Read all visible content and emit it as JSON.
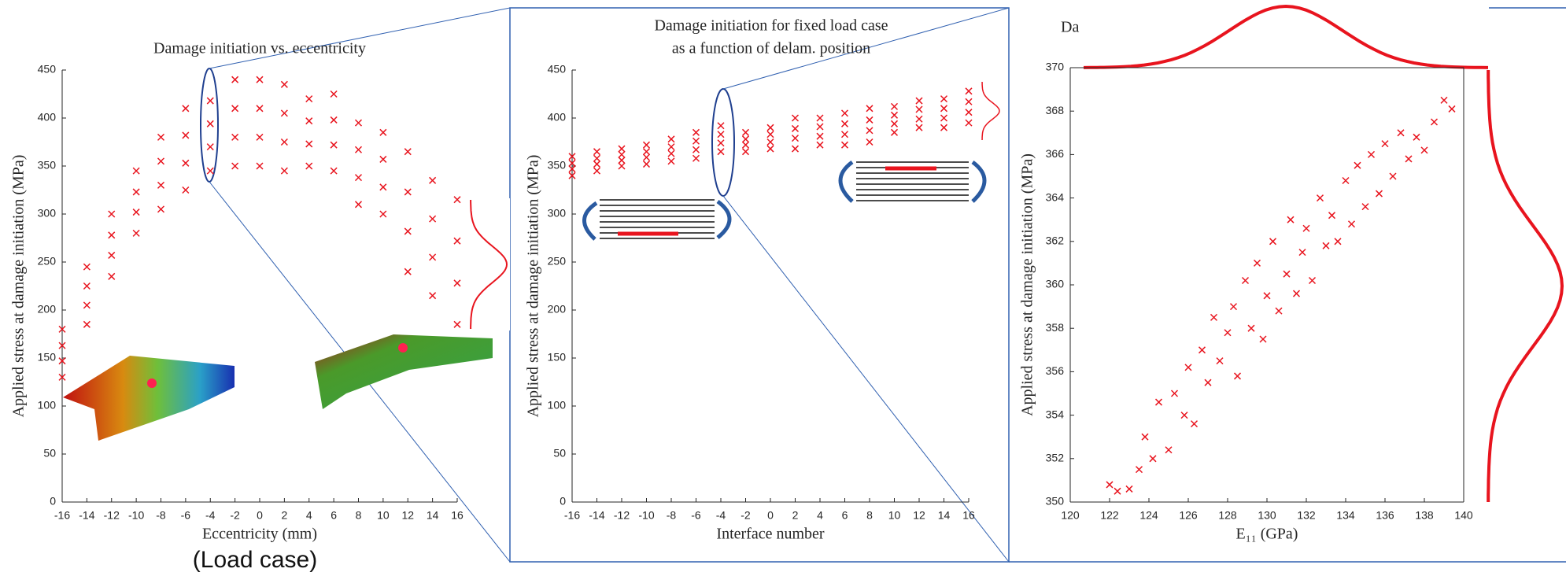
{
  "chart_data": [
    {
      "type": "scatter",
      "title": [
        "Damage initiation vs. eccentricity"
      ],
      "x_label": "Eccentricity (mm)",
      "y_label": "Applied stress at damage initiation (MPa)",
      "annotation": "(Load case)",
      "color": "#e8141e",
      "x": [
        -16,
        -16,
        -16,
        -16,
        -14,
        -14,
        -14,
        -14,
        -12,
        -12,
        -12,
        -12,
        -10,
        -10,
        -10,
        -10,
        -8,
        -8,
        -8,
        -8,
        -6,
        -6,
        -6,
        -6,
        -4,
        -4,
        -4,
        -4,
        -2,
        -2,
        -2,
        -2,
        0,
        0,
        0,
        0,
        2,
        2,
        2,
        2,
        4,
        4,
        4,
        4,
        6,
        6,
        6,
        6,
        8,
        8,
        8,
        8,
        10,
        10,
        10,
        10,
        12,
        12,
        12,
        12,
        14,
        14,
        14,
        14,
        16,
        16,
        16,
        16
      ],
      "values": [
        130,
        147,
        163,
        180,
        185,
        205,
        225,
        245,
        235,
        257,
        278,
        300,
        280,
        302,
        323,
        345,
        305,
        330,
        355,
        380,
        325,
        353,
        382,
        410,
        345,
        370,
        394,
        418,
        350,
        380,
        410,
        440,
        350,
        380,
        410,
        440,
        345,
        375,
        405,
        435,
        350,
        373,
        397,
        420,
        345,
        372,
        398,
        425,
        310,
        338,
        367,
        395,
        300,
        328,
        357,
        385,
        240,
        282,
        323,
        365,
        215,
        255,
        295,
        335,
        185,
        228,
        272,
        315
      ],
      "xlim": [
        -16,
        16
      ],
      "xticks": [
        -16,
        -14,
        -12,
        -10,
        -8,
        -6,
        -4,
        -2,
        0,
        2,
        4,
        6,
        8,
        10,
        12,
        14,
        16
      ],
      "ylim": [
        0,
        450
      ],
      "yticks": [
        0,
        50,
        100,
        150,
        200,
        250,
        300,
        350,
        400,
        450
      ]
    },
    {
      "type": "scatter",
      "title": [
        "Damage initiation for fixed load case",
        "as a function of delam. position"
      ],
      "x_label": "Interface number",
      "y_label": "Applied stress at damage initiation (MPa)",
      "color": "#e8141e",
      "x": [
        -16,
        -16,
        -16,
        -16,
        -14,
        -14,
        -14,
        -14,
        -12,
        -12,
        -12,
        -12,
        -10,
        -10,
        -10,
        -10,
        -8,
        -8,
        -8,
        -8,
        -6,
        -6,
        -6,
        -6,
        -4,
        -4,
        -4,
        -4,
        -2,
        -2,
        -2,
        -2,
        0,
        0,
        0,
        0,
        2,
        2,
        2,
        2,
        4,
        4,
        4,
        4,
        6,
        6,
        6,
        6,
        8,
        8,
        8,
        8,
        10,
        10,
        10,
        10,
        12,
        12,
        12,
        12,
        14,
        14,
        14,
        14,
        16,
        16,
        16,
        16
      ],
      "values": [
        340,
        347,
        353,
        360,
        345,
        352,
        358,
        365,
        350,
        356,
        362,
        368,
        352,
        359,
        365,
        372,
        355,
        363,
        370,
        378,
        358,
        367,
        376,
        385,
        365,
        374,
        383,
        392,
        365,
        372,
        378,
        385,
        368,
        375,
        383,
        390,
        368,
        379,
        389,
        400,
        372,
        381,
        391,
        400,
        372,
        383,
        394,
        405,
        375,
        387,
        398,
        410,
        385,
        394,
        403,
        412,
        390,
        399,
        409,
        418,
        390,
        400,
        410,
        420,
        395,
        406,
        417,
        428
      ],
      "xlim": [
        -16,
        16
      ],
      "xticks": [
        -16,
        -14,
        -12,
        -10,
        -8,
        -6,
        -4,
        -2,
        0,
        2,
        4,
        6,
        8,
        10,
        12,
        14,
        16
      ],
      "ylim": [
        0,
        450
      ],
      "yticks": [
        0,
        50,
        100,
        150,
        200,
        250,
        300,
        350,
        400,
        450
      ]
    },
    {
      "type": "scatter",
      "title": [
        "Da"
      ],
      "x_label": "E₁₁ (GPa)",
      "y_label": "Applied stress at damage initiation (MPa)",
      "color": "#e8141e",
      "x": [
        122,
        122.4,
        123,
        123.5,
        123.8,
        124.2,
        124.5,
        125,
        125.3,
        125.8,
        126,
        126.3,
        126.7,
        127,
        127.3,
        127.6,
        128,
        128.3,
        128.5,
        128.9,
        129.2,
        129.5,
        129.8,
        130,
        130.3,
        130.6,
        131,
        131.2,
        131.5,
        131.8,
        132,
        132.3,
        132.7,
        133,
        133.3,
        133.6,
        134,
        134.3,
        134.6,
        135,
        135.3,
        135.7,
        136,
        136.4,
        136.8,
        137.2,
        137.6,
        138,
        138.5,
        139,
        139.4
      ],
      "values": [
        350.8,
        350.5,
        350.6,
        351.5,
        353,
        352,
        354.6,
        352.4,
        355,
        354,
        356.2,
        353.6,
        357,
        355.5,
        358.5,
        356.5,
        357.8,
        359,
        355.8,
        360.2,
        358,
        361,
        357.5,
        359.5,
        362,
        358.8,
        360.5,
        363,
        359.6,
        361.5,
        362.6,
        360.2,
        364,
        361.8,
        363.2,
        362,
        364.8,
        362.8,
        365.5,
        363.6,
        366,
        364.2,
        366.5,
        365,
        367,
        365.8,
        366.8,
        366.2,
        367.5,
        368.5,
        368.1
      ],
      "xlim": [
        120,
        140
      ],
      "xticks": [
        120,
        122,
        124,
        126,
        128,
        130,
        132,
        134,
        136,
        138,
        140
      ],
      "ylim": [
        350,
        370
      ],
      "yticks": [
        350,
        352,
        354,
        356,
        358,
        360,
        362,
        364,
        366,
        368,
        370
      ]
    }
  ]
}
